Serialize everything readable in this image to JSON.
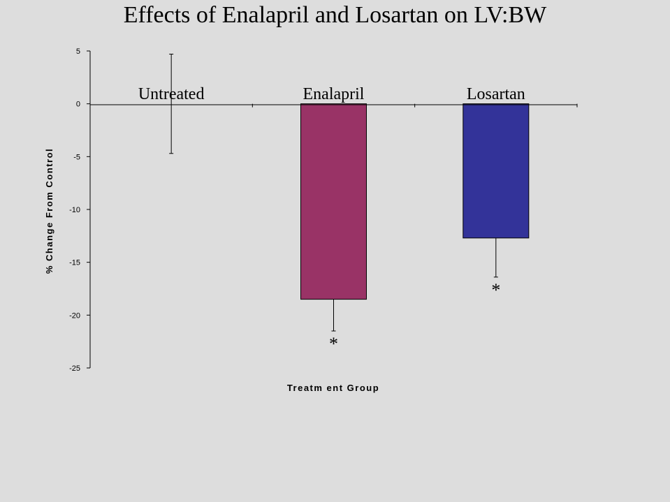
{
  "chart_data": {
    "type": "bar",
    "title": "Effects of Enalapril and Losartan on LV:BW",
    "xlabel": "Treatm ent Group",
    "ylabel": "% Change From Control",
    "ylim": [
      -25,
      5
    ],
    "yticks": [
      5,
      0,
      -5,
      -10,
      -15,
      -20,
      -25
    ],
    "categories": [
      "Untreated",
      "Enalapril",
      "Losartan"
    ],
    "values": [
      0,
      -18.5,
      -12.7
    ],
    "error": [
      4.7,
      3.0,
      3.7
    ],
    "colors": [
      "#993366",
      "#993366",
      "#333399"
    ],
    "annotations": [
      "",
      "*",
      "*"
    ],
    "grid": false,
    "legend": "none"
  }
}
